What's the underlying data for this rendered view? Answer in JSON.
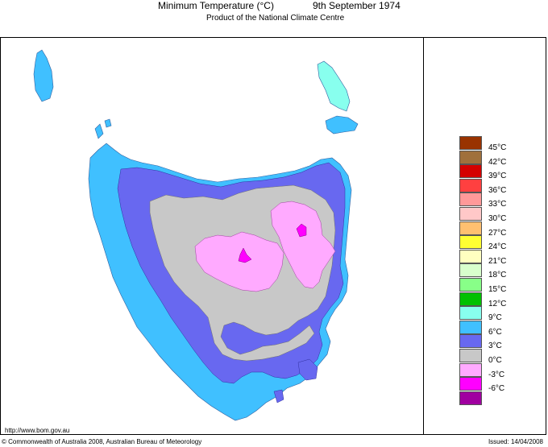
{
  "header": {
    "title": "Minimum Temperature (°C)",
    "date": "9th September 1974",
    "subtitle": "Product of the National Climate Centre"
  },
  "legend": [
    {
      "label": "45°C",
      "color": "#993300"
    },
    {
      "label": "42°C",
      "color": "#a0703c"
    },
    {
      "label": "39°C",
      "color": "#d40000"
    },
    {
      "label": "36°C",
      "color": "#ff4040"
    },
    {
      "label": "33°C",
      "color": "#ff9999"
    },
    {
      "label": "30°C",
      "color": "#ffc8c8"
    },
    {
      "label": "27°C",
      "color": "#ffc070"
    },
    {
      "label": "24°C",
      "color": "#ffff33"
    },
    {
      "label": "21°C",
      "color": "#ffffc0"
    },
    {
      "label": "18°C",
      "color": "#d8ffcc"
    },
    {
      "label": "15°C",
      "color": "#88ff88"
    },
    {
      "label": "12°C",
      "color": "#00c000"
    },
    {
      "label": "9°C",
      "color": "#88ffee"
    },
    {
      "label": "6°C",
      "color": "#40c0ff"
    },
    {
      "label": "3°C",
      "color": "#6868f0"
    },
    {
      "label": "0°C",
      "color": "#c8c8c8"
    },
    {
      "label": "-3°C",
      "color": "#ffaaff"
    },
    {
      "label": "-6°C",
      "color": "#ff00ff"
    },
    {
      "label": "",
      "color": "#a000a0"
    }
  ],
  "footer": {
    "url": "http://www.bom.gov.au",
    "copyright": "© Commonwealth of Australia 2008, Australian Bureau of Meteorology",
    "issued": "Issued: 14/04/2008"
  }
}
